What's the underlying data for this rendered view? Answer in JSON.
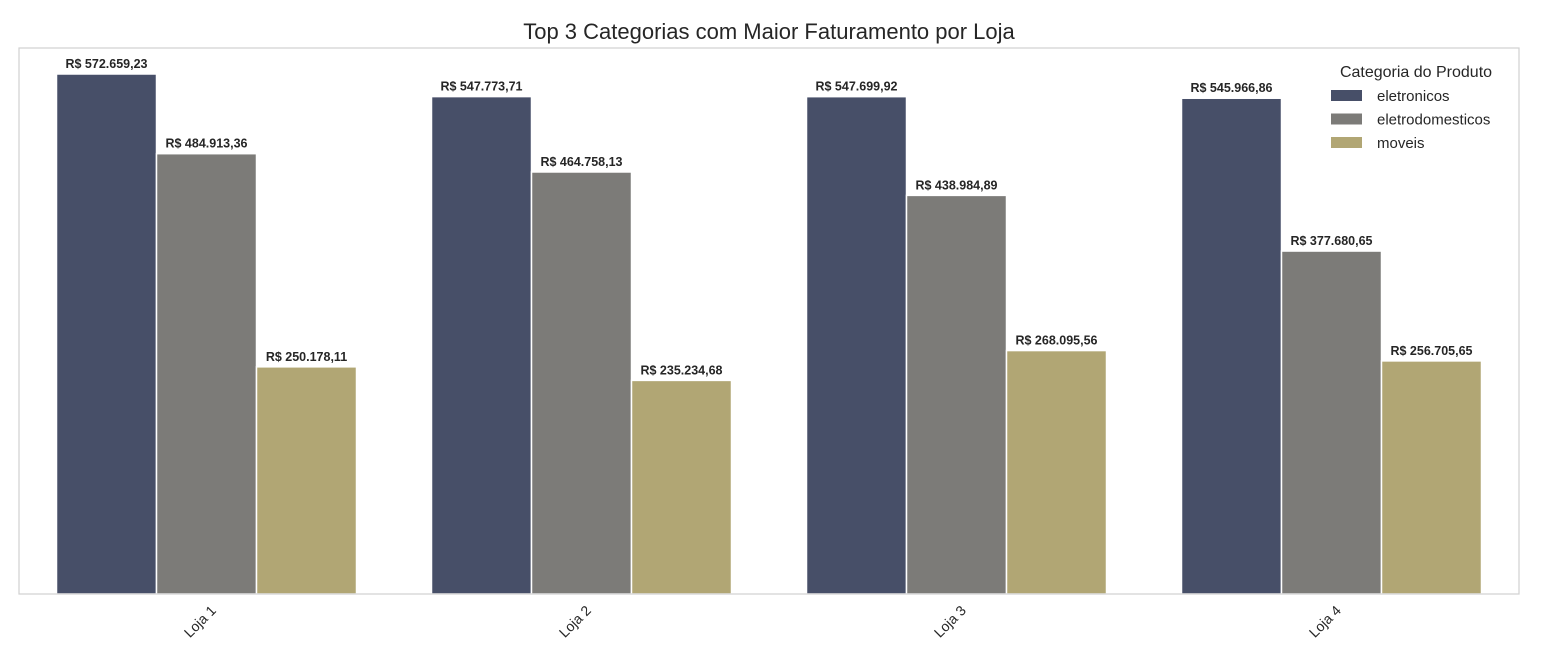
{
  "chart_data": {
    "type": "bar",
    "title": "Top 3 Categorias com Maior Faturamento por Loja",
    "xlabel": "",
    "ylabel": "",
    "categories": [
      "Loja 1",
      "Loja 2",
      "Loja 3",
      "Loja 4"
    ],
    "series": [
      {
        "name": "eletronicos",
        "color": "#474f68",
        "values": [
          572659.23,
          547773.71,
          547699.92,
          545966.86
        ],
        "labels": [
          "R$ 572.659,23",
          "R$ 547.773,71",
          "R$ 547.699,92",
          "R$ 545.966,86"
        ]
      },
      {
        "name": "eletrodomesticos",
        "color": "#7c7b78",
        "values": [
          484913.36,
          464758.13,
          438984.89,
          377680.65
        ],
        "labels": [
          "R$ 484.913,36",
          "R$ 464.758,13",
          "R$ 438.984,89",
          "R$ 377.680,65"
        ]
      },
      {
        "name": "moveis",
        "color": "#b1a674",
        "values": [
          250178.11,
          235234.68,
          268095.56,
          256705.65
        ],
        "labels": [
          "R$ 250.178,11",
          "R$ 235.234,68",
          "R$ 268.095,56",
          "R$ 256.705,65"
        ]
      }
    ],
    "ylim": [
      0,
      601292
    ],
    "grid": false,
    "y_ticks_visible": false,
    "legend": {
      "title": "Categoria do Produto",
      "placement": "top-right"
    }
  }
}
